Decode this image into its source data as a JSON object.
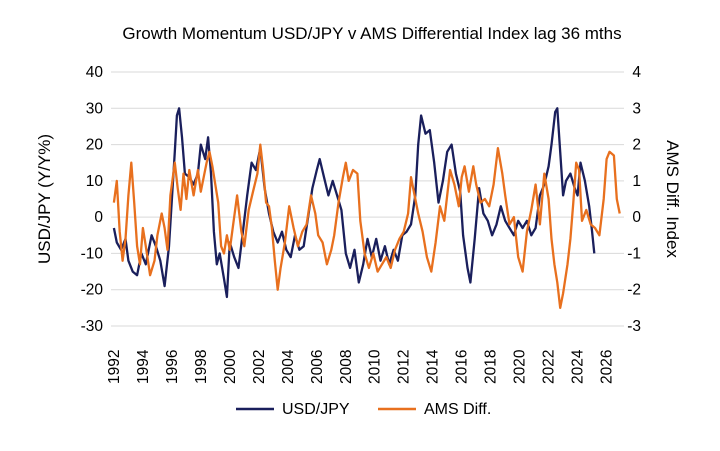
{
  "chart_data": {
    "type": "line",
    "title": "Growth Momentum USD/JPY v AMS Differential Index lag 36 mths",
    "xlabel": "",
    "ylabel": "USD/JPY (Y/Y%)",
    "y2label": "AMS Diff. Index",
    "xlim": [
      1991.8,
      2027.2
    ],
    "ylim": [
      -30,
      40
    ],
    "y2lim": [
      -3,
      4
    ],
    "x_ticks": [
      "1992",
      "1994",
      "1996",
      "1998",
      "2000",
      "2002",
      "2004",
      "2006",
      "2008",
      "2010",
      "2012",
      "2014",
      "2016",
      "2018",
      "2020",
      "2022",
      "2024",
      "2026"
    ],
    "y_ticks": [
      "-30",
      "-20",
      "-10",
      "0",
      "10",
      "20",
      "30",
      "40"
    ],
    "y2_ticks": [
      "-3",
      "-2",
      "-1",
      "0",
      "1",
      "2",
      "3",
      "4"
    ],
    "grid": true,
    "legend_position": "bottom-center",
    "series": [
      {
        "name": "USD/JPY",
        "axis": "left",
        "color": "#1a1f5c",
        "points": [
          [
            1992.0,
            -3
          ],
          [
            1992.2,
            -7
          ],
          [
            1992.5,
            -9
          ],
          [
            1992.8,
            -6
          ],
          [
            1993.0,
            -12
          ],
          [
            1993.3,
            -15
          ],
          [
            1993.6,
            -16
          ],
          [
            1993.9,
            -10
          ],
          [
            1994.2,
            -13
          ],
          [
            1994.6,
            -5
          ],
          [
            1994.9,
            -8
          ],
          [
            1995.2,
            -12
          ],
          [
            1995.5,
            -19
          ],
          [
            1995.8,
            -8
          ],
          [
            1996.0,
            5
          ],
          [
            1996.2,
            18
          ],
          [
            1996.35,
            28
          ],
          [
            1996.5,
            30
          ],
          [
            1996.7,
            22
          ],
          [
            1996.9,
            12
          ],
          [
            1997.2,
            11
          ],
          [
            1997.5,
            9
          ],
          [
            1997.8,
            12
          ],
          [
            1998.0,
            20
          ],
          [
            1998.3,
            16
          ],
          [
            1998.5,
            22
          ],
          [
            1998.7,
            12
          ],
          [
            1998.9,
            -4
          ],
          [
            1999.1,
            -13
          ],
          [
            1999.3,
            -10
          ],
          [
            1999.6,
            -17
          ],
          [
            1999.8,
            -22
          ],
          [
            2000.0,
            -7
          ],
          [
            2000.3,
            -11
          ],
          [
            2000.6,
            -14
          ],
          [
            2000.9,
            -4
          ],
          [
            2001.2,
            6
          ],
          [
            2001.5,
            15
          ],
          [
            2001.8,
            13
          ],
          [
            2002.1,
            19
          ],
          [
            2002.4,
            8
          ],
          [
            2002.7,
            1
          ],
          [
            2003.0,
            -4
          ],
          [
            2003.3,
            -7
          ],
          [
            2003.6,
            -4
          ],
          [
            2003.9,
            -9
          ],
          [
            2004.2,
            -11
          ],
          [
            2004.5,
            -5
          ],
          [
            2004.8,
            -9
          ],
          [
            2005.1,
            -8
          ],
          [
            2005.4,
            0
          ],
          [
            2005.7,
            8
          ],
          [
            2006.0,
            13
          ],
          [
            2006.2,
            16
          ],
          [
            2006.5,
            11
          ],
          [
            2006.8,
            6
          ],
          [
            2007.1,
            10
          ],
          [
            2007.4,
            6
          ],
          [
            2007.7,
            2
          ],
          [
            2008.0,
            -10
          ],
          [
            2008.3,
            -14
          ],
          [
            2008.6,
            -9
          ],
          [
            2008.9,
            -18
          ],
          [
            2009.2,
            -13
          ],
          [
            2009.5,
            -6
          ],
          [
            2009.8,
            -11
          ],
          [
            2010.1,
            -6
          ],
          [
            2010.4,
            -12
          ],
          [
            2010.7,
            -8
          ],
          [
            2011.0,
            -13
          ],
          [
            2011.3,
            -9
          ],
          [
            2011.6,
            -12
          ],
          [
            2011.9,
            -5
          ],
          [
            2012.2,
            -4
          ],
          [
            2012.5,
            -2
          ],
          [
            2012.8,
            6
          ],
          [
            2013.0,
            20
          ],
          [
            2013.2,
            28
          ],
          [
            2013.5,
            23
          ],
          [
            2013.8,
            24
          ],
          [
            2014.1,
            15
          ],
          [
            2014.4,
            4
          ],
          [
            2014.7,
            10
          ],
          [
            2015.0,
            18
          ],
          [
            2015.3,
            20
          ],
          [
            2015.6,
            12
          ],
          [
            2015.9,
            7
          ],
          [
            2016.1,
            -5
          ],
          [
            2016.4,
            -14
          ],
          [
            2016.6,
            -18
          ],
          [
            2016.9,
            -6
          ],
          [
            2017.2,
            8
          ],
          [
            2017.5,
            1
          ],
          [
            2017.8,
            -1
          ],
          [
            2018.1,
            -5
          ],
          [
            2018.4,
            -2
          ],
          [
            2018.7,
            3
          ],
          [
            2019.0,
            -1
          ],
          [
            2019.3,
            -3
          ],
          [
            2019.6,
            -5
          ],
          [
            2019.9,
            -1
          ],
          [
            2020.2,
            -3
          ],
          [
            2020.5,
            -1
          ],
          [
            2020.8,
            -5
          ],
          [
            2021.1,
            -3
          ],
          [
            2021.4,
            6
          ],
          [
            2021.7,
            9
          ],
          [
            2022.0,
            14
          ],
          [
            2022.2,
            20
          ],
          [
            2022.45,
            29
          ],
          [
            2022.6,
            30
          ],
          [
            2022.8,
            18
          ],
          [
            2023.0,
            6
          ],
          [
            2023.2,
            10
          ],
          [
            2023.5,
            12
          ],
          [
            2023.8,
            8
          ],
          [
            2024.0,
            6
          ],
          [
            2024.2,
            15
          ],
          [
            2024.5,
            10
          ],
          [
            2024.8,
            3
          ],
          [
            2025.0,
            -4
          ],
          [
            2025.15,
            -10
          ]
        ]
      },
      {
        "name": "AMS Diff.",
        "axis": "right",
        "color": "#e8701e",
        "points": [
          [
            1992.0,
            0.4
          ],
          [
            1992.2,
            1.0
          ],
          [
            1992.4,
            -0.4
          ],
          [
            1992.6,
            -1.2
          ],
          [
            1992.8,
            -0.6
          ],
          [
            1993.0,
            0.6
          ],
          [
            1993.2,
            1.5
          ],
          [
            1993.4,
            0.4
          ],
          [
            1993.6,
            -0.8
          ],
          [
            1993.8,
            -1.3
          ],
          [
            1994.0,
            -0.3
          ],
          [
            1994.2,
            -0.8
          ],
          [
            1994.5,
            -1.6
          ],
          [
            1994.8,
            -1.2
          ],
          [
            1995.0,
            -0.5
          ],
          [
            1995.3,
            0.1
          ],
          [
            1995.5,
            -0.3
          ],
          [
            1995.7,
            -0.9
          ],
          [
            1995.9,
            0.6
          ],
          [
            1996.2,
            1.5
          ],
          [
            1996.4,
            0.8
          ],
          [
            1996.6,
            0.2
          ],
          [
            1996.8,
            1.2
          ],
          [
            1997.0,
            0.5
          ],
          [
            1997.2,
            1.3
          ],
          [
            1997.5,
            0.6
          ],
          [
            1997.8,
            1.3
          ],
          [
            1998.0,
            0.7
          ],
          [
            1998.2,
            1.1
          ],
          [
            1998.4,
            1.5
          ],
          [
            1998.6,
            1.8
          ],
          [
            1998.8,
            1.4
          ],
          [
            1999.0,
            0.9
          ],
          [
            1999.2,
            0.4
          ],
          [
            1999.4,
            -0.8
          ],
          [
            1999.6,
            -1.0
          ],
          [
            1999.8,
            -0.5
          ],
          [
            2000.0,
            -0.9
          ],
          [
            2000.2,
            -0.3
          ],
          [
            2000.5,
            0.6
          ],
          [
            2000.8,
            -0.4
          ],
          [
            2001.0,
            -0.8
          ],
          [
            2001.3,
            0.2
          ],
          [
            2001.6,
            0.7
          ],
          [
            2001.9,
            1.2
          ],
          [
            2002.1,
            2.0
          ],
          [
            2002.3,
            1.3
          ],
          [
            2002.5,
            0.4
          ],
          [
            2002.7,
            0.3
          ],
          [
            2002.9,
            -0.3
          ],
          [
            2003.1,
            -1.2
          ],
          [
            2003.3,
            -2.0
          ],
          [
            2003.5,
            -1.4
          ],
          [
            2003.8,
            -0.7
          ],
          [
            2004.1,
            0.3
          ],
          [
            2004.4,
            -0.3
          ],
          [
            2004.7,
            -0.8
          ],
          [
            2005.0,
            -0.4
          ],
          [
            2005.3,
            -0.2
          ],
          [
            2005.6,
            0.6
          ],
          [
            2005.9,
            0.1
          ],
          [
            2006.1,
            -0.5
          ],
          [
            2006.4,
            -0.7
          ],
          [
            2006.7,
            -1.3
          ],
          [
            2007.0,
            -0.9
          ],
          [
            2007.2,
            -0.5
          ],
          [
            2007.5,
            0.4
          ],
          [
            2007.8,
            1.1
          ],
          [
            2008.0,
            1.5
          ],
          [
            2008.2,
            1.0
          ],
          [
            2008.5,
            1.3
          ],
          [
            2008.8,
            1.2
          ],
          [
            2009.0,
            -0.1
          ],
          [
            2009.3,
            -1.0
          ],
          [
            2009.6,
            -1.4
          ],
          [
            2009.9,
            -1.0
          ],
          [
            2010.2,
            -1.5
          ],
          [
            2010.5,
            -1.3
          ],
          [
            2010.8,
            -1.1
          ],
          [
            2011.1,
            -1.4
          ],
          [
            2011.4,
            -0.9
          ],
          [
            2011.7,
            -0.6
          ],
          [
            2012.0,
            -0.4
          ],
          [
            2012.3,
            0.1
          ],
          [
            2012.5,
            1.1
          ],
          [
            2012.8,
            0.5
          ],
          [
            2013.0,
            0.1
          ],
          [
            2013.3,
            -0.4
          ],
          [
            2013.6,
            -1.1
          ],
          [
            2013.9,
            -1.5
          ],
          [
            2014.2,
            -0.7
          ],
          [
            2014.5,
            0.3
          ],
          [
            2014.8,
            -0.1
          ],
          [
            2015.0,
            0.6
          ],
          [
            2015.2,
            1.3
          ],
          [
            2015.5,
            0.9
          ],
          [
            2015.8,
            0.3
          ],
          [
            2016.0,
            1.1
          ],
          [
            2016.2,
            1.4
          ],
          [
            2016.5,
            0.7
          ],
          [
            2016.8,
            1.4
          ],
          [
            2017.0,
            0.9
          ],
          [
            2017.3,
            0.4
          ],
          [
            2017.6,
            0.5
          ],
          [
            2017.9,
            0.3
          ],
          [
            2018.2,
            0.9
          ],
          [
            2018.5,
            1.9
          ],
          [
            2018.8,
            1.2
          ],
          [
            2019.0,
            0.6
          ],
          [
            2019.3,
            -0.2
          ],
          [
            2019.6,
            0.0
          ],
          [
            2019.9,
            -1.1
          ],
          [
            2020.2,
            -1.5
          ],
          [
            2020.5,
            -0.4
          ],
          [
            2020.8,
            0.2
          ],
          [
            2021.1,
            0.9
          ],
          [
            2021.4,
            -0.2
          ],
          [
            2021.7,
            1.2
          ],
          [
            2022.0,
            0.5
          ],
          [
            2022.2,
            -0.6
          ],
          [
            2022.4,
            -1.3
          ],
          [
            2022.6,
            -1.8
          ],
          [
            2022.8,
            -2.5
          ],
          [
            2023.0,
            -2.1
          ],
          [
            2023.3,
            -1.3
          ],
          [
            2023.5,
            -0.6
          ],
          [
            2023.7,
            0.4
          ],
          [
            2023.9,
            1.5
          ],
          [
            2024.1,
            1.3
          ],
          [
            2024.3,
            -0.1
          ],
          [
            2024.6,
            0.2
          ],
          [
            2024.9,
            -0.2
          ],
          [
            2025.2,
            -0.3
          ],
          [
            2025.5,
            -0.5
          ],
          [
            2025.8,
            0.5
          ],
          [
            2026.0,
            1.6
          ],
          [
            2026.2,
            1.8
          ],
          [
            2026.5,
            1.7
          ],
          [
            2026.7,
            0.5
          ],
          [
            2026.9,
            0.1
          ]
        ]
      }
    ]
  }
}
